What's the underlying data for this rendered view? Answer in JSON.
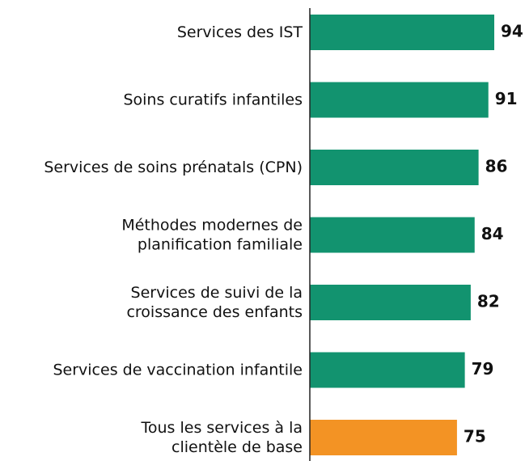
{
  "chart_data": {
    "type": "bar",
    "orientation": "horizontal",
    "categories": [
      "Services des IST",
      "Soins curatifs infantiles",
      "Services de soins prénatals (CPN)",
      "Méthodes modernes de\nplanification familiale",
      "Services de suivi de la\ncroissance des enfants",
      "Services de vaccination infantile",
      "Tous les services à la\nclientèle de base"
    ],
    "values": [
      94,
      91,
      86,
      84,
      82,
      79,
      75
    ],
    "colors": [
      "#12936f",
      "#12936f",
      "#12936f",
      "#12936f",
      "#12936f",
      "#12936f",
      "#f39324"
    ]
  }
}
